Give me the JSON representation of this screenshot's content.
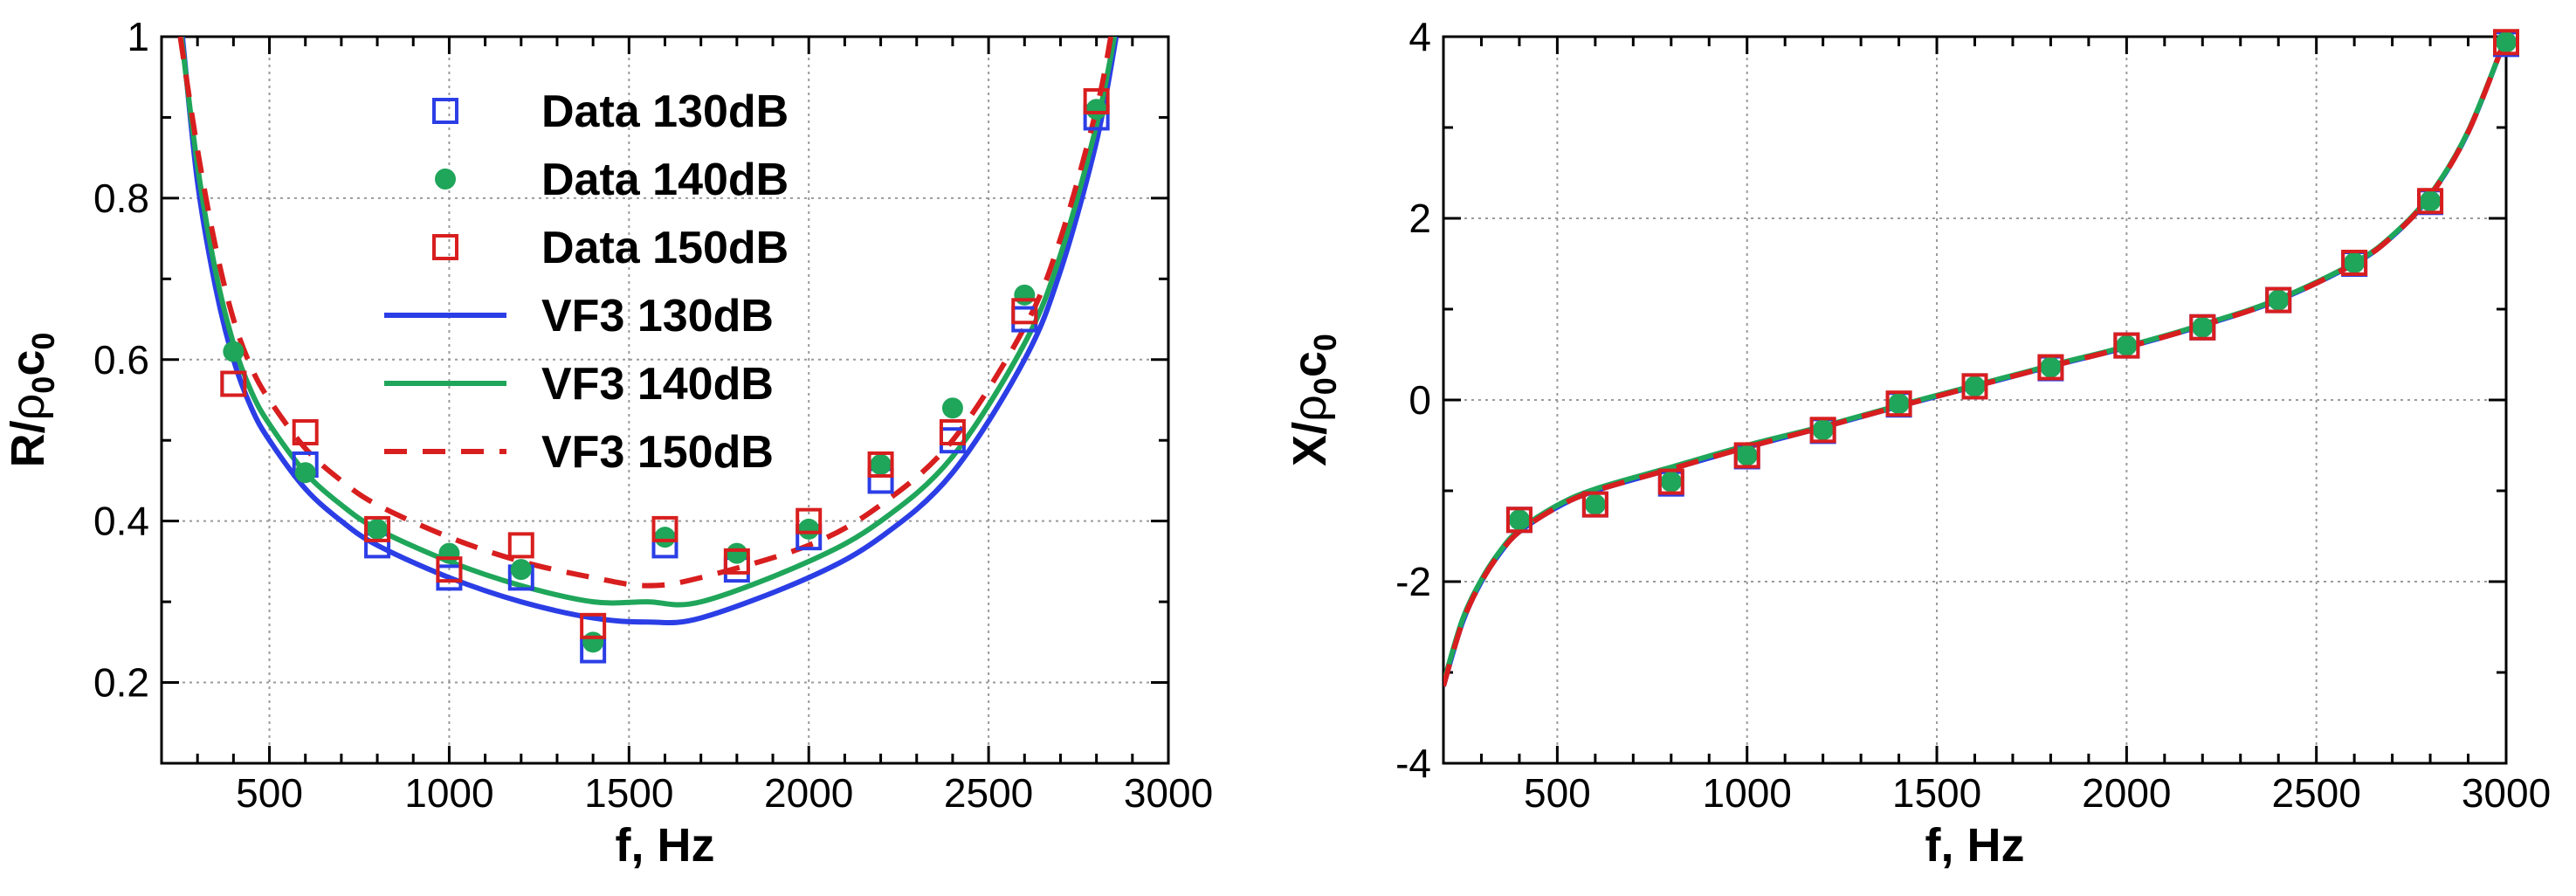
{
  "chart_data": [
    {
      "type": "line",
      "title": "",
      "xlabel": "f, Hz",
      "ylabel": "R/ρ0c0",
      "ylabel_parts": {
        "a": "R/",
        "b": "ρ",
        "c": "0",
        "d": "c",
        "e": "0"
      },
      "xlim": [
        200,
        3000
      ],
      "ylim": [
        0.1,
        1.0
      ],
      "xticks": [
        500,
        1000,
        1500,
        2000,
        2500,
        3000
      ],
      "xtick_labels": [
        "500",
        "1000",
        "1500",
        "2000",
        "2500",
        "3000"
      ],
      "yticks": [
        0.2,
        0.4,
        0.6,
        0.8,
        1.0
      ],
      "ytick_labels": [
        "0.2",
        "0.4",
        "0.6",
        "0.8",
        "1"
      ],
      "grid": true,
      "legend_position": "top-center",
      "series": [
        {
          "name": "Data 130dB",
          "kind": "marker-square-open",
          "color": "#2b3ee6",
          "x": [
            400,
            600,
            800,
            1000,
            1200,
            1400,
            1600,
            1800,
            2000,
            2200,
            2400,
            2600,
            2800
          ],
          "y": [
            0.57,
            0.47,
            0.37,
            0.33,
            0.33,
            0.24,
            0.37,
            0.34,
            0.38,
            0.45,
            0.5,
            0.65,
            0.9
          ]
        },
        {
          "name": "Data 140dB",
          "kind": "marker-circle-filled",
          "color": "#1fa65a",
          "x": [
            400,
            600,
            800,
            1000,
            1200,
            1400,
            1600,
            1800,
            2000,
            2200,
            2400,
            2600,
            2800
          ],
          "y": [
            0.61,
            0.46,
            0.39,
            0.36,
            0.34,
            0.25,
            0.38,
            0.36,
            0.39,
            0.47,
            0.54,
            0.68,
            0.91
          ]
        },
        {
          "name": "Data 150dB",
          "kind": "marker-square-open",
          "color": "#d81e1e",
          "x": [
            400,
            600,
            800,
            1000,
            1200,
            1400,
            1600,
            1800,
            2000,
            2200,
            2400,
            2600,
            2800
          ],
          "y": [
            0.57,
            0.51,
            0.39,
            0.34,
            0.37,
            0.27,
            0.39,
            0.35,
            0.4,
            0.47,
            0.51,
            0.66,
            0.92
          ]
        },
        {
          "name": "VF3 130dB",
          "kind": "line-solid",
          "color": "#2b3ee6",
          "x": [
            258,
            300,
            350,
            400,
            450,
            500,
            600,
            700,
            800,
            1000,
            1200,
            1400,
            1550,
            1700,
            2000,
            2200,
            2400,
            2600,
            2700,
            2800,
            2855
          ],
          "y": [
            1.0,
            0.82,
            0.69,
            0.6,
            0.54,
            0.5,
            0.44,
            0.4,
            0.37,
            0.33,
            0.3,
            0.28,
            0.275,
            0.28,
            0.33,
            0.38,
            0.46,
            0.6,
            0.71,
            0.87,
            1.0
          ]
        },
        {
          "name": "VF3 140dB",
          "kind": "line-solid",
          "color": "#1fa65a",
          "x": [
            255,
            300,
            350,
            400,
            450,
            500,
            600,
            700,
            800,
            1000,
            1200,
            1400,
            1550,
            1700,
            2000,
            2200,
            2400,
            2600,
            2700,
            2800,
            2850
          ],
          "y": [
            1.0,
            0.84,
            0.71,
            0.62,
            0.56,
            0.52,
            0.46,
            0.42,
            0.39,
            0.35,
            0.32,
            0.3,
            0.3,
            0.3,
            0.35,
            0.4,
            0.48,
            0.62,
            0.73,
            0.89,
            1.0
          ]
        },
        {
          "name": "VF3 150dB",
          "kind": "line-dashed",
          "color": "#d81e1e",
          "x": [
            252,
            300,
            350,
            400,
            450,
            500,
            600,
            700,
            800,
            1000,
            1200,
            1400,
            1550,
            1700,
            2000,
            2200,
            2400,
            2600,
            2700,
            2800,
            2840
          ],
          "y": [
            1.0,
            0.86,
            0.74,
            0.65,
            0.59,
            0.55,
            0.49,
            0.45,
            0.42,
            0.38,
            0.35,
            0.33,
            0.32,
            0.33,
            0.37,
            0.42,
            0.5,
            0.64,
            0.75,
            0.91,
            1.0
          ]
        }
      ]
    },
    {
      "type": "line",
      "title": "",
      "xlabel": "f, Hz",
      "ylabel": "X/ρ0c0",
      "ylabel_parts": {
        "a": "X/",
        "b": "ρ",
        "c": "0",
        "d": "c",
        "e": "0"
      },
      "xlim": [
        200,
        3000
      ],
      "ylim": [
        -4,
        4
      ],
      "xticks": [
        500,
        1000,
        1500,
        2000,
        2500,
        3000
      ],
      "xtick_labels": [
        "500",
        "1000",
        "1500",
        "2000",
        "2500",
        "3000"
      ],
      "yticks": [
        -4,
        -2,
        0,
        2,
        4
      ],
      "ytick_labels": [
        "-4",
        "-2",
        "0",
        "2",
        "4"
      ],
      "grid": true,
      "series": [
        {
          "name": "Data 130dB",
          "kind": "marker-square-open",
          "color": "#2b3ee6",
          "x": [
            400,
            600,
            800,
            1000,
            1200,
            1400,
            1600,
            1800,
            2000,
            2200,
            2400,
            2600,
            2800,
            3000
          ],
          "y": [
            -1.32,
            -1.15,
            -0.92,
            -0.62,
            -0.34,
            -0.05,
            0.15,
            0.35,
            0.6,
            0.8,
            1.1,
            1.5,
            2.18,
            3.92
          ]
        },
        {
          "name": "Data 140dB",
          "kind": "marker-circle-filled",
          "color": "#1fa65a",
          "x": [
            400,
            600,
            800,
            1000,
            1200,
            1400,
            1600,
            1800,
            2000,
            2200,
            2400,
            2600,
            2800,
            3000
          ],
          "y": [
            -1.32,
            -1.15,
            -0.9,
            -0.61,
            -0.33,
            -0.04,
            0.15,
            0.36,
            0.6,
            0.8,
            1.1,
            1.51,
            2.19,
            3.94
          ]
        },
        {
          "name": "Data 150dB",
          "kind": "marker-square-open",
          "color": "#d81e1e",
          "x": [
            400,
            600,
            800,
            1000,
            1200,
            1400,
            1600,
            1800,
            2000,
            2200,
            2400,
            2600,
            2800,
            3000
          ],
          "y": [
            -1.32,
            -1.15,
            -0.9,
            -0.61,
            -0.33,
            -0.04,
            0.15,
            0.36,
            0.6,
            0.8,
            1.1,
            1.51,
            2.19,
            3.94
          ]
        },
        {
          "name": "VF3 130dB",
          "kind": "line-solid",
          "color": "#2b3ee6",
          "x": [
            200,
            250,
            300,
            350,
            400,
            500,
            600,
            800,
            1000,
            1200,
            1400,
            1600,
            1800,
            2000,
            2200,
            2400,
            2600,
            2700,
            2800,
            2900,
            3000
          ],
          "y": [
            -3.15,
            -2.45,
            -2.0,
            -1.68,
            -1.45,
            -1.18,
            -1.0,
            -0.76,
            -0.52,
            -0.3,
            -0.07,
            0.15,
            0.37,
            0.58,
            0.82,
            1.1,
            1.5,
            1.8,
            2.25,
            2.95,
            4.0
          ]
        },
        {
          "name": "VF3 140dB",
          "kind": "line-solid",
          "color": "#1fa65a",
          "x": [
            200,
            250,
            300,
            350,
            400,
            500,
            600,
            800,
            1000,
            1200,
            1400,
            1600,
            1800,
            2000,
            2200,
            2400,
            2600,
            2700,
            2800,
            2900,
            3000
          ],
          "y": [
            -3.12,
            -2.42,
            -1.98,
            -1.66,
            -1.43,
            -1.16,
            -0.98,
            -0.74,
            -0.5,
            -0.29,
            -0.06,
            0.16,
            0.38,
            0.59,
            0.83,
            1.11,
            1.51,
            1.81,
            2.26,
            2.96,
            4.0
          ]
        },
        {
          "name": "VF3 150dB",
          "kind": "line-dashed",
          "color": "#d81e1e",
          "x": [
            200,
            250,
            300,
            350,
            400,
            500,
            600,
            800,
            1000,
            1200,
            1400,
            1600,
            1800,
            2000,
            2200,
            2400,
            2600,
            2700,
            2800,
            2900,
            3000
          ],
          "y": [
            -3.15,
            -2.45,
            -2.0,
            -1.68,
            -1.45,
            -1.18,
            -1.0,
            -0.76,
            -0.52,
            -0.3,
            -0.07,
            0.15,
            0.37,
            0.58,
            0.82,
            1.1,
            1.5,
            1.8,
            2.25,
            2.95,
            4.0
          ]
        }
      ]
    }
  ]
}
